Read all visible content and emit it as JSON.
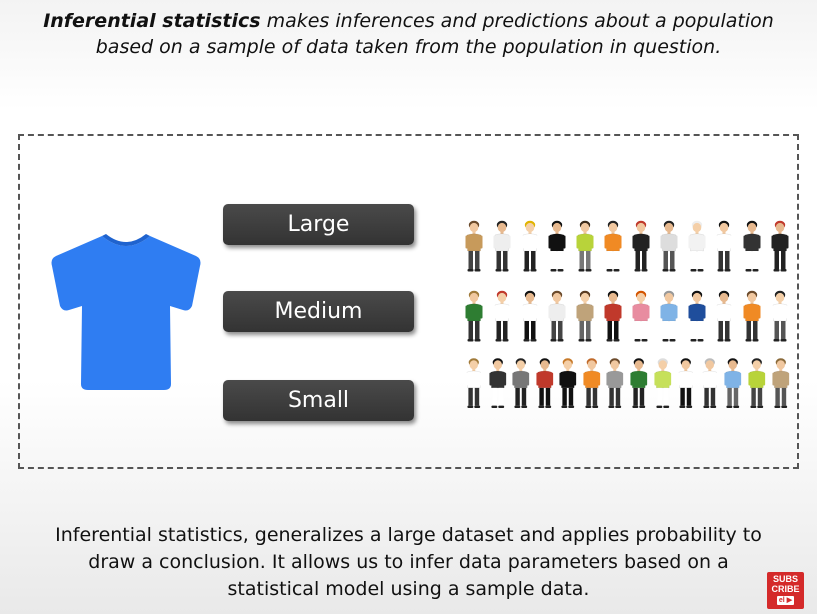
{
  "header": {
    "lead": "Inferential statistics",
    "rest_line1": " makes inferences and predictions about a population",
    "line2": "based on a sample of data taken from the population in question."
  },
  "sizes": {
    "large": "Large",
    "medium": "Medium",
    "small": "Small"
  },
  "footer": {
    "line1": "Inferential statistics, generalizes a large dataset and applies probability to",
    "line2": "draw a conclusion. It allows us to infer data parameters based on a",
    "line3": "statistical model using a sample data."
  },
  "badge": {
    "line1": "SUBS",
    "line2": "CRIBE",
    "mini": "el ▶"
  },
  "colors": {
    "shirt": "#2f7df2",
    "button": "#3a3a3a",
    "badge": "#d42a2a"
  },
  "crowd": {
    "rows": [
      [
        {
          "hair": "#6b4a2b",
          "skin": "#f1c8a0",
          "top": "#c79a5b",
          "legs": "#444"
        },
        {
          "hair": "#222",
          "skin": "#e7b98f",
          "top": "#eeeeee",
          "legs": "#333"
        },
        {
          "hair": "#e0b300",
          "skin": "#f4cfa8",
          "top": "#ffffff",
          "legs": "#222"
        },
        {
          "hair": "#111",
          "skin": "#e7b98f",
          "top": "#111",
          "legs": "#fff"
        },
        {
          "hair": "#3a2a1a",
          "skin": "#f1c8a0",
          "top": "#b8d33a",
          "legs": "#777"
        },
        {
          "hair": "#222",
          "skin": "#f1c8a0",
          "top": "#f08a24",
          "legs": "#fff"
        },
        {
          "hair": "#c0392b",
          "skin": "#f1c8a0",
          "top": "#222",
          "legs": "#222"
        },
        {
          "hair": "#222",
          "skin": "#e7b98f",
          "top": "#dddddd",
          "legs": "#555"
        },
        {
          "hair": "#eeeeee",
          "skin": "#f4cfa8",
          "top": "#f2f2f2",
          "legs": "#fff"
        },
        {
          "hair": "#111",
          "skin": "#f1c8a0",
          "top": "#ffffff",
          "legs": "#333"
        },
        {
          "hair": "#111",
          "skin": "#e7b98f",
          "top": "#333",
          "legs": "#fff"
        },
        {
          "hair": "#c0392b",
          "skin": "#e7b98f",
          "top": "#222",
          "legs": "#222"
        }
      ],
      [
        {
          "hair": "#a07a3a",
          "skin": "#f1c8a0",
          "top": "#2e7d32",
          "legs": "#333"
        },
        {
          "hair": "#c0392b",
          "skin": "#f4cfa8",
          "top": "#ffffff",
          "legs": "#222"
        },
        {
          "hair": "#111",
          "skin": "#e7b98f",
          "top": "#ffffff",
          "legs": "#111"
        },
        {
          "hair": "#6b4a2b",
          "skin": "#f1c8a0",
          "top": "#eeeeee",
          "legs": "#444"
        },
        {
          "hair": "#5a3c22",
          "skin": "#f4cfa8",
          "top": "#bfa37a",
          "legs": "#666"
        },
        {
          "hair": "#111",
          "skin": "#e7b98f",
          "top": "#c0392b",
          "legs": "#111"
        },
        {
          "hair": "#d35400",
          "skin": "#f4cfa8",
          "top": "#e88ca0",
          "legs": "#fff"
        },
        {
          "hair": "#999",
          "skin": "#f1c8a0",
          "top": "#7fb3e6",
          "legs": "#fff"
        },
        {
          "hair": "#111",
          "skin": "#f1c8a0",
          "top": "#1f4e9c",
          "legs": "#fff"
        },
        {
          "hair": "#111",
          "skin": "#e7b98f",
          "top": "#ffffff",
          "legs": "#333"
        },
        {
          "hair": "#6b4a2b",
          "skin": "#f1c8a0",
          "top": "#f08a24",
          "legs": "#333"
        },
        {
          "hair": "#222",
          "skin": "#f4cfa8",
          "top": "#ffffff",
          "legs": "#555"
        }
      ],
      [
        {
          "hair": "#a07a3a",
          "skin": "#f4cfa8",
          "top": "#ffffff",
          "legs": "#333"
        },
        {
          "hair": "#111",
          "skin": "#f1c8a0",
          "top": "#333",
          "legs": "#fff"
        },
        {
          "hair": "#222",
          "skin": "#f4cfa8",
          "top": "#777",
          "legs": "#222"
        },
        {
          "hair": "#111",
          "skin": "#e7b98f",
          "top": "#c0392b",
          "legs": "#111"
        },
        {
          "hair": "#c77a2a",
          "skin": "#f4cfa8",
          "top": "#111",
          "legs": "#111"
        },
        {
          "hair": "#c06a2a",
          "skin": "#f1c8a0",
          "top": "#f08a24",
          "legs": "#333"
        },
        {
          "hair": "#6b4a2b",
          "skin": "#f1c8a0",
          "top": "#999",
          "legs": "#333"
        },
        {
          "hair": "#111",
          "skin": "#e7b98f",
          "top": "#2e7d32",
          "legs": "#222"
        },
        {
          "hair": "#ddd",
          "skin": "#f4cfa8",
          "top": "#c6e05a",
          "legs": "#fff"
        },
        {
          "hair": "#111",
          "skin": "#f1c8a0",
          "top": "#ffffff",
          "legs": "#111"
        },
        {
          "hair": "#bbb",
          "skin": "#f1c8a0",
          "top": "#ffffff",
          "legs": "#333"
        },
        {
          "hair": "#111",
          "skin": "#e7b98f",
          "top": "#7fb3e6",
          "legs": "#666"
        },
        {
          "hair": "#222",
          "skin": "#f4cfa8",
          "top": "#b8d33a",
          "legs": "#444"
        },
        {
          "hair": "#8a6a3a",
          "skin": "#f1c8a0",
          "top": "#bfa37a",
          "legs": "#555"
        }
      ]
    ]
  }
}
